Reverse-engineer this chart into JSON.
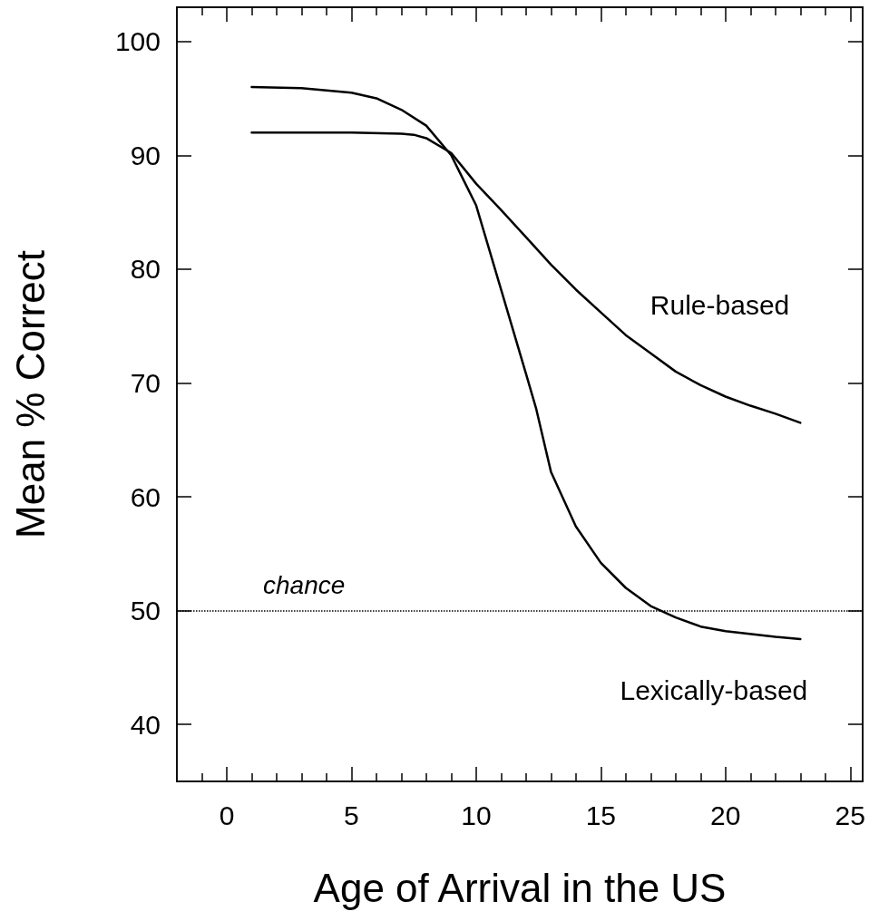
{
  "chart_data": {
    "type": "line",
    "xlabel": "Age of Arrival in the US",
    "ylabel": "Mean % Correct",
    "xlim": [
      -2,
      25.5
    ],
    "ylim": [
      35,
      103
    ],
    "xticks": [
      {
        "value": -1,
        "label": null
      },
      0,
      {
        "value": 1,
        "label": null
      },
      {
        "value": 2,
        "label": null
      },
      {
        "value": 3,
        "label": null
      },
      {
        "value": 4,
        "label": null
      },
      5,
      {
        "value": 6,
        "label": null
      },
      {
        "value": 7,
        "label": null
      },
      {
        "value": 8,
        "label": null
      },
      {
        "value": 9,
        "label": null
      },
      10,
      {
        "value": 11,
        "label": null
      },
      {
        "value": 12,
        "label": null
      },
      {
        "value": 13,
        "label": null
      },
      {
        "value": 14,
        "label": null
      },
      15,
      {
        "value": 16,
        "label": null
      },
      {
        "value": 17,
        "label": null
      },
      {
        "value": 18,
        "label": null
      },
      {
        "value": 19,
        "label": null
      },
      20,
      {
        "value": 21,
        "label": null
      },
      {
        "value": 22,
        "label": null
      },
      {
        "value": 23,
        "label": null
      },
      {
        "value": 24,
        "label": null
      },
      25
    ],
    "yticks": [
      40,
      50,
      60,
      70,
      80,
      90,
      100
    ],
    "grid": false,
    "legend": false,
    "marker": "none",
    "line_style": "solid",
    "series": [
      {
        "name": "Rule-based",
        "color": "#000000",
        "x": [
          1,
          3,
          5,
          7,
          7.5,
          8,
          9,
          10,
          11,
          12,
          13,
          14,
          15,
          16,
          17,
          18,
          19,
          20,
          21,
          22,
          23
        ],
        "values": [
          92,
          92,
          92,
          91.9,
          91.8,
          91.5,
          90.2,
          87.5,
          85.2,
          82.8,
          80.4,
          78.2,
          76.2,
          74.2,
          72.6,
          71,
          69.8,
          68.8,
          68,
          67.3,
          66.5
        ]
      },
      {
        "name": "Lexically-based",
        "color": "#000000",
        "x": [
          1,
          3,
          5,
          6,
          7,
          8,
          9,
          10,
          11,
          12,
          12.4,
          13,
          14,
          15,
          16,
          17,
          18,
          19,
          20,
          22,
          23
        ],
        "values": [
          96,
          95.9,
          95.5,
          95,
          94,
          92.6,
          90,
          85.6,
          78.2,
          70.8,
          67.8,
          62.2,
          57.4,
          54.2,
          52,
          50.4,
          49.4,
          48.6,
          48.2,
          47.7,
          47.5
        ]
      }
    ],
    "ref_lines": [
      {
        "axis": "y",
        "value": 50,
        "label": "chance",
        "line_style": "dotted",
        "color": "#000000"
      }
    ]
  }
}
